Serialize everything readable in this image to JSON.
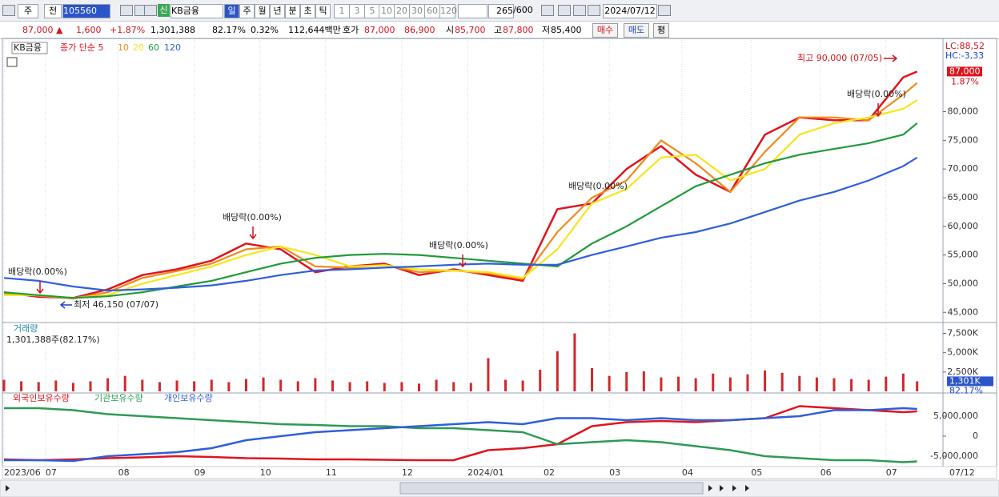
{
  "toolbar": {
    "market": "주",
    "mode": "전",
    "code": "105560",
    "name": "KB금융",
    "credit": "신",
    "periods": [
      "일",
      "주",
      "월",
      "년",
      "분",
      "초",
      "틱"
    ],
    "intervals": [
      "1",
      "3",
      "5",
      "10",
      "20",
      "30",
      "60",
      "120"
    ],
    "count": "265",
    "max": "/600",
    "date": "2024/07/12"
  },
  "info_bar": {
    "price": "87,000 ▲",
    "change": "1,600",
    "change_pct": "+1.87%",
    "volume": "1,301,388",
    "volume_ratio": "82.17%",
    "turnover": "0.32%",
    "amount": "112,644백만",
    "quote_label": "호가",
    "ask": "87,000",
    "bid": "86,900",
    "open_label": "시",
    "open": "85,700",
    "high_label": "고",
    "high": "87,800",
    "low_label": "저",
    "low": "85,400",
    "buy": "매수",
    "sell": "매도",
    "eval": "평"
  },
  "chart_data": [
    {
      "type": "line",
      "stock_name": "KB금융",
      "xlim": [
        0,
        265
      ],
      "ylim": [
        43500,
        92500
      ],
      "yticks": [
        {
          "value": 45000,
          "label": "45,000"
        },
        {
          "value": 50000,
          "label": "50,000"
        },
        {
          "value": 55000,
          "label": "55,000"
        },
        {
          "value": 60000,
          "label": "60,000"
        },
        {
          "value": 65000,
          "label": "65,000"
        },
        {
          "value": 70000,
          "label": "70,000"
        },
        {
          "value": 75000,
          "label": "75,000"
        },
        {
          "value": 80000,
          "label": "80,000"
        }
      ],
      "x": [
        0,
        10,
        20,
        30,
        40,
        50,
        60,
        70,
        80,
        90,
        100,
        110,
        120,
        130,
        140,
        150,
        160,
        170,
        180,
        190,
        200,
        210,
        220,
        230,
        240,
        250,
        260,
        264
      ],
      "series": [
        {
          "name": "종가 단순 5",
          "color": "#e0141e",
          "values": [
            48500,
            47700,
            47500,
            49000,
            51500,
            52500,
            54000,
            57000,
            56000,
            52000,
            53000,
            53500,
            51500,
            52500,
            51500,
            50500,
            63000,
            64000,
            70000,
            74000,
            69000,
            66000,
            76000,
            79000,
            78500,
            78500,
            86000,
            87000
          ]
        },
        {
          "name": "10",
          "color": "#f08a1c",
          "values": [
            48300,
            47900,
            47400,
            48500,
            51000,
            52200,
            53500,
            56000,
            56500,
            53000,
            52800,
            53300,
            52000,
            52300,
            51800,
            50800,
            59000,
            65000,
            68000,
            75000,
            71000,
            66000,
            73000,
            79000,
            79000,
            78500,
            83000,
            85000
          ]
        },
        {
          "name": "20",
          "color": "#f5e61a",
          "values": [
            48000,
            48000,
            47500,
            48000,
            50000,
            51500,
            53000,
            55000,
            56500,
            55000,
            53000,
            53200,
            52500,
            52300,
            52000,
            51000,
            56000,
            64000,
            66500,
            72000,
            72500,
            68000,
            70000,
            76000,
            78000,
            79000,
            80500,
            82000
          ]
        },
        {
          "name": "60",
          "color": "#1f9a3a",
          "values": [
            48500,
            48000,
            47500,
            47800,
            48500,
            49500,
            50500,
            52000,
            53500,
            54500,
            55000,
            55200,
            55000,
            54500,
            54000,
            53500,
            53000,
            57000,
            60000,
            63500,
            67000,
            69000,
            71000,
            72500,
            73500,
            74500,
            76000,
            78000
          ]
        },
        {
          "name": "120",
          "color": "#2f5fd8",
          "values": [
            51000,
            50500,
            49500,
            48800,
            49000,
            49300,
            49700,
            50500,
            51500,
            52300,
            52500,
            52800,
            53000,
            53300,
            53500,
            53300,
            53300,
            55000,
            56500,
            58000,
            59000,
            60500,
            62500,
            64500,
            66000,
            68000,
            70500,
            72000
          ]
        }
      ],
      "annotations": [
        "배당락(0.00%)",
        "배당락(0.00%)",
        "배당락(0.00%)",
        "배당락(0.00%)",
        "배당락(0.00%)",
        "최고 90,000 (07/05)",
        "최저 46,150 (07/07)"
      ],
      "lc": "LC:88,52",
      "hc": "HC:-3,33",
      "last": {
        "value": 87000,
        "label": "87,000"
      },
      "last_pct": "1.87%"
    },
    {
      "type": "bar",
      "title": "거래량",
      "subtitle": "1,301,388주(82.17%)",
      "xlim": [
        0,
        265
      ],
      "ylim": [
        0,
        8800
      ],
      "yticks": [
        {
          "value": 2500,
          "label": "2,500K"
        },
        {
          "value": 5000,
          "label": "5,000K"
        },
        {
          "value": 7500,
          "label": "7,500K"
        }
      ],
      "x": [
        0,
        5,
        10,
        15,
        20,
        25,
        30,
        35,
        40,
        45,
        50,
        55,
        60,
        65,
        70,
        75,
        80,
        85,
        90,
        95,
        100,
        105,
        110,
        115,
        120,
        125,
        130,
        135,
        140,
        145,
        150,
        155,
        160,
        165,
        170,
        175,
        180,
        185,
        190,
        195,
        200,
        205,
        210,
        215,
        220,
        225,
        230,
        235,
        240,
        245,
        250,
        255,
        260,
        264
      ],
      "series": [
        {
          "name": "거래량",
          "color": "#d0282c",
          "values": [
            1500,
            1300,
            1200,
            1400,
            1100,
            1300,
            1700,
            2000,
            1500,
            1200,
            1400,
            1300,
            1500,
            1200,
            1600,
            1800,
            1500,
            1300,
            1700,
            1400,
            1200,
            1300,
            1100,
            1200,
            1000,
            1500,
            1200,
            1100,
            4300,
            1500,
            1400,
            2800,
            5200,
            7500,
            3000,
            2000,
            2500,
            2600,
            1800,
            1900,
            1700,
            2300,
            1800,
            2200,
            2700,
            2400,
            2000,
            1800,
            1700,
            1600,
            1500,
            1900,
            2300,
            1301.388
          ]
        }
      ],
      "last": {
        "value": 1301.388,
        "label": "1,301K"
      },
      "last_pct": "82.17%"
    },
    {
      "type": "line",
      "xlim": [
        0,
        265
      ],
      "ylim": [
        -7400000,
        10600000
      ],
      "yticks": [
        {
          "value": -5000000,
          "label": "-5,000,000"
        },
        0,
        {
          "value": 5000000,
          "label": "5,000,000"
        }
      ],
      "xticks": [
        {
          "value": 0,
          "label": "2023/06"
        },
        {
          "value": 12,
          "label": "07"
        },
        {
          "value": 33,
          "label": "08"
        },
        {
          "value": 55,
          "label": "09"
        },
        {
          "value": 74,
          "label": "10"
        },
        {
          "value": 93,
          "label": "11"
        },
        {
          "value": 115,
          "label": "12"
        },
        {
          "value": 134,
          "label": "2024/01"
        },
        {
          "value": 156,
          "label": "02"
        },
        {
          "value": 175,
          "label": "03"
        },
        {
          "value": 196,
          "label": "04"
        },
        {
          "value": 216,
          "label": "05"
        },
        {
          "value": 236,
          "label": "06"
        },
        {
          "value": 255,
          "label": "07"
        }
      ],
      "x_end_label": "07/12",
      "x": [
        0,
        10,
        20,
        30,
        40,
        50,
        60,
        70,
        80,
        90,
        100,
        110,
        120,
        130,
        140,
        150,
        160,
        170,
        180,
        190,
        200,
        210,
        220,
        230,
        240,
        250,
        260,
        264
      ],
      "series": [
        {
          "name": "외국인보유수량",
          "color": "#e0141e",
          "values": [
            -5800000,
            -6000000,
            -5800000,
            -5500000,
            -5300000,
            -5000000,
            -5200000,
            -5500000,
            -5600000,
            -5800000,
            -5800000,
            -5900000,
            -6000000,
            -6000000,
            -3500000,
            -3000000,
            -2000000,
            2500000,
            3500000,
            3800000,
            3500000,
            4000000,
            4500000,
            7500000,
            7000000,
            6500000,
            6000000,
            6200000
          ]
        },
        {
          "name": "기관보유수량",
          "color": "#2e9a55",
          "values": [
            7000000,
            7000000,
            6500000,
            5500000,
            5000000,
            4500000,
            4000000,
            3500000,
            3000000,
            2800000,
            2500000,
            2500000,
            2000000,
            2000000,
            1500000,
            1000000,
            -2000000,
            -1500000,
            -1000000,
            -1500000,
            -2500000,
            -3500000,
            -5000000,
            -5500000,
            -6000000,
            -6000000,
            -6500000,
            -6300000
          ]
        },
        {
          "name": "개인보유수량",
          "color": "#2f5fd8",
          "values": [
            -6000000,
            -6000000,
            -6200000,
            -5000000,
            -4500000,
            -4000000,
            -3000000,
            -1000000,
            0,
            1000000,
            1500000,
            2000000,
            2500000,
            3000000,
            3500000,
            3000000,
            4500000,
            4500000,
            4000000,
            4500000,
            4000000,
            4000000,
            4500000,
            5000000,
            6500000,
            6500000,
            7000000,
            6800000
          ]
        }
      ]
    }
  ]
}
